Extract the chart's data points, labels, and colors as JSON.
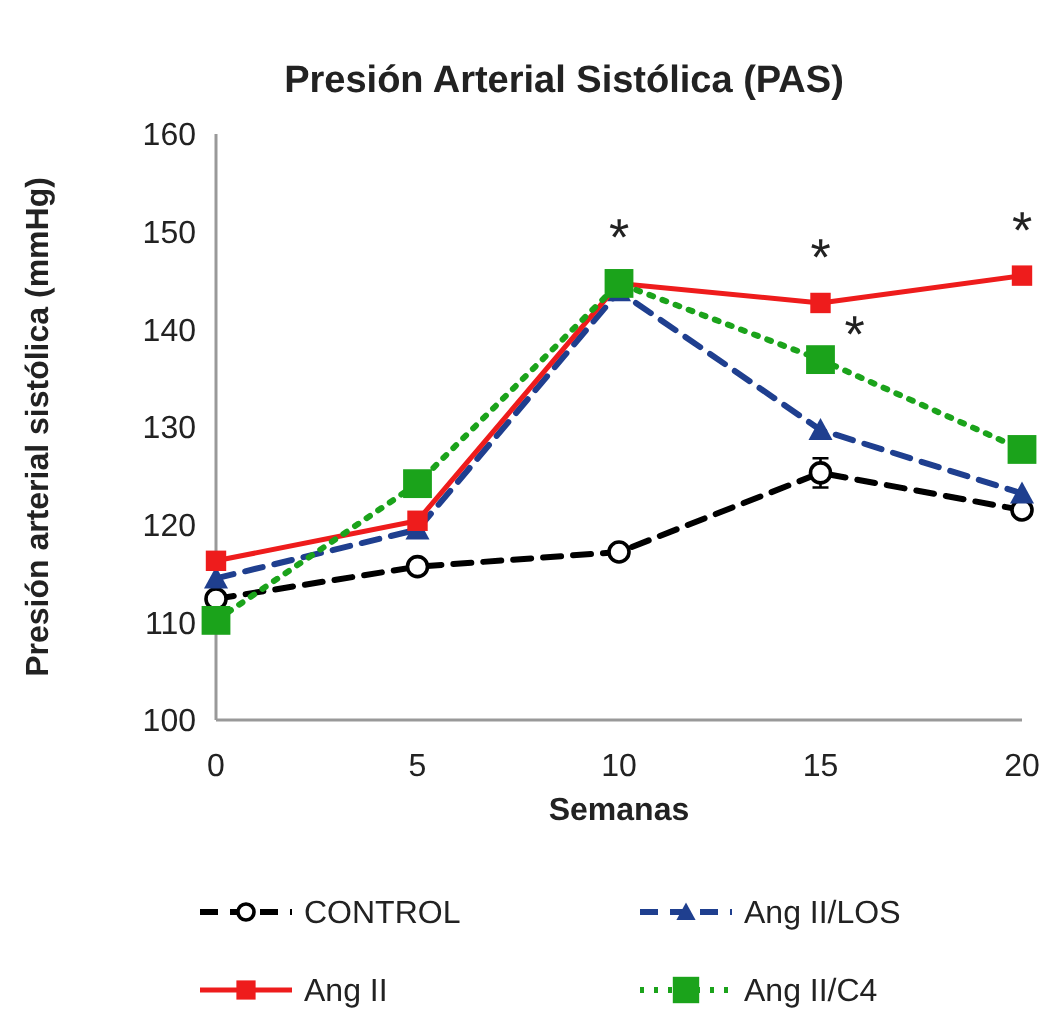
{
  "chart_data": {
    "type": "line",
    "title": "Presión Arterial Sistólica (PAS)",
    "xlabel": "Semanas",
    "ylabel": "Presión arterial sistólica (mmHg)",
    "x": [
      0,
      5,
      10,
      15,
      20
    ],
    "xlim": [
      0,
      20
    ],
    "xticks": [
      0,
      5,
      10,
      15,
      20
    ],
    "ylim": [
      100,
      160
    ],
    "yticks": [
      100,
      110,
      120,
      130,
      140,
      150,
      160
    ],
    "grid": false,
    "legend": "bottom",
    "series": [
      {
        "name": "CONTROL",
        "color": "#000000",
        "values": [
          112.4,
          115.7,
          117.2,
          125.3,
          121.5
        ],
        "errors": [
          null,
          null,
          null,
          1.5,
          null
        ],
        "marker": "circle",
        "line_style": "dashed"
      },
      {
        "name": "Ang II/LOS",
        "color": "#1f3f8f",
        "values": [
          114.5,
          119.5,
          143.9,
          129.7,
          123.2
        ],
        "marker": "triangle",
        "line_style": "dashed"
      },
      {
        "name": "Ang II",
        "color": "#ee1c1c",
        "values": [
          116.3,
          120.4,
          144.7,
          142.7,
          145.5
        ],
        "marker": "square",
        "line_style": "solid"
      },
      {
        "name": "Ang II/C4",
        "color": "#1ba31b",
        "values": [
          110.2,
          124.2,
          144.7,
          136.9,
          127.7
        ],
        "marker": "square",
        "line_style": "dotted"
      }
    ],
    "annotations": [
      {
        "text": "*",
        "x": 10,
        "y": 144.7
      },
      {
        "text": "*",
        "x": 15,
        "y": 142.7
      },
      {
        "text": "*",
        "x": 15,
        "y": 136.9
      },
      {
        "text": "*",
        "x": 20,
        "y": 145.5
      }
    ]
  }
}
